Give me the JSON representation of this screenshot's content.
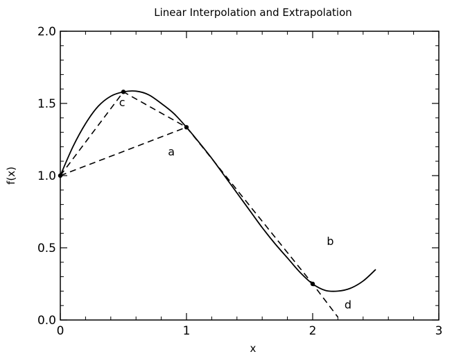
{
  "chart_data": {
    "type": "line",
    "title": "Linear Interpolation and Extrapolation",
    "xlabel": "x",
    "ylabel": "f(x)",
    "xlim": [
      0,
      3
    ],
    "ylim": [
      0,
      2
    ],
    "x_ticks": [
      {
        "value": 0,
        "label": "0"
      },
      {
        "value": 1,
        "label": "1"
      },
      {
        "value": 2,
        "label": "2"
      },
      {
        "value": 3,
        "label": "3"
      }
    ],
    "y_ticks": [
      {
        "value": 0,
        "label": "0.0"
      },
      {
        "value": 0.5,
        "label": "0.5"
      },
      {
        "value": 1,
        "label": "1.0"
      },
      {
        "value": 1.5,
        "label": "1.5"
      },
      {
        "value": 2,
        "label": "2.0"
      }
    ],
    "grid": false,
    "series": [
      {
        "style": "solid",
        "x": [
          0,
          0.1,
          0.2,
          0.3,
          0.4,
          0.5,
          0.6,
          0.7,
          0.8,
          0.9,
          1.0,
          1.1,
          1.2,
          1.3,
          1.4,
          1.5,
          1.6,
          1.7,
          1.8,
          1.9,
          2.0,
          2.1,
          2.2,
          2.3,
          2.4,
          2.5
        ],
        "y": [
          1.0,
          1.2,
          1.36,
          1.48,
          1.55,
          1.58,
          1.585,
          1.56,
          1.5,
          1.43,
          1.335,
          1.23,
          1.12,
          1.0,
          0.88,
          0.76,
          0.64,
          0.53,
          0.43,
          0.33,
          0.25,
          0.205,
          0.2,
          0.22,
          0.27,
          0.35
        ]
      },
      {
        "style": "dashed",
        "x": [
          0,
          1.0
        ],
        "y": [
          1.0,
          1.335
        ]
      },
      {
        "style": "dashed",
        "x": [
          0,
          0.5,
          1.0
        ],
        "y": [
          1.0,
          1.58,
          1.335
        ]
      },
      {
        "style": "dashed",
        "x": [
          1.0,
          2.0,
          2.2
        ],
        "y": [
          1.335,
          0.25,
          0.02
        ]
      }
    ],
    "points": [
      {
        "x": 0,
        "y": 1.0
      },
      {
        "x": 0.5,
        "y": 1.58
      },
      {
        "x": 1.0,
        "y": 1.335
      },
      {
        "x": 2.0,
        "y": 0.25
      }
    ],
    "annotations": [
      {
        "text": "a",
        "x": 0.88,
        "y": 1.14
      },
      {
        "text": "b",
        "x": 2.14,
        "y": 0.52
      },
      {
        "text": "c",
        "x": 0.49,
        "y": 1.48
      },
      {
        "text": "d",
        "x": 2.28,
        "y": 0.08
      }
    ]
  }
}
